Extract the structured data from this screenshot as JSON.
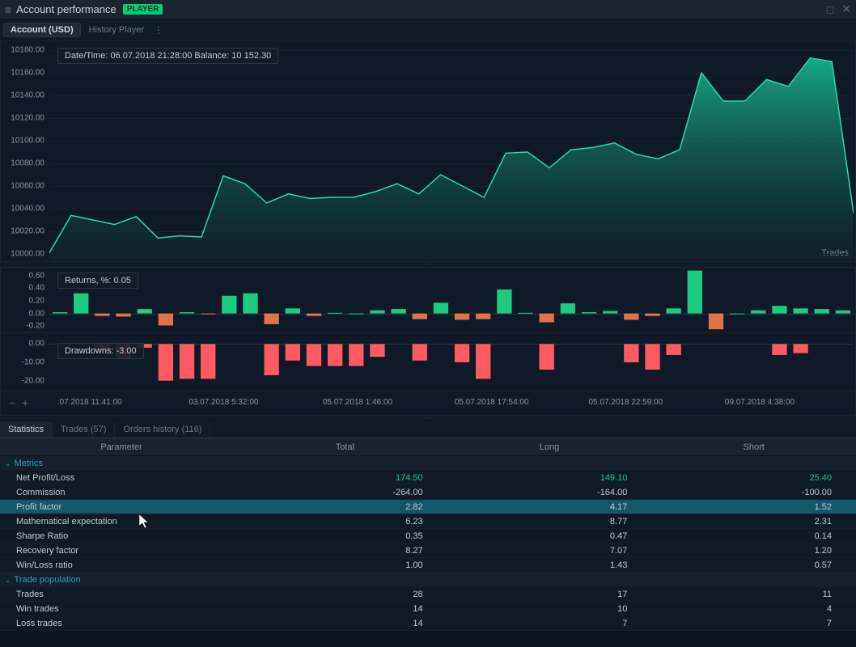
{
  "window": {
    "title": "Account performance",
    "badge": "PLAYER"
  },
  "toolbar": {
    "account_label": "Account (USD)",
    "mode_label": "History Player"
  },
  "balance_chart": {
    "type": "area",
    "info_label": "Date/Time: 06.07.2018 21:28:00    Balance: 10 152.30",
    "right_label": "Trades",
    "ylim": [
      9995,
      10185
    ],
    "yticks": [
      10000.0,
      10020.0,
      10040.0,
      10060.0,
      10080.0,
      10100.0,
      10120.0,
      10140.0,
      10160.0,
      10180.0
    ],
    "line_color": "#1de0a8",
    "fill_top": "#18b890",
    "fill_bottom": "#0f3030",
    "bg": "#0f1a28",
    "values": [
      10001,
      10034,
      10030,
      10026,
      10033,
      10014,
      10016,
      10015,
      10069,
      10062,
      10045,
      10053,
      10049,
      10050,
      10050,
      10055,
      10062,
      10053,
      10070,
      10060,
      10050,
      10089,
      10090,
      10076,
      10092,
      10094,
      10098,
      10088,
      10084,
      10092,
      10160,
      10135,
      10135,
      10154,
      10148,
      10173,
      10170,
      10036
    ]
  },
  "returns_chart": {
    "type": "bar",
    "info_label": "Returns, %: 0.05",
    "ylim": [
      -0.3,
      0.7
    ],
    "yticks": [
      -0.2,
      0.0,
      0.2,
      0.4,
      0.6
    ],
    "pos_color": "#1ecb82",
    "neg_color": "#e0734a",
    "values": [
      0.02,
      0.32,
      -0.04,
      -0.05,
      0.07,
      -0.19,
      0.02,
      -0.01,
      0.28,
      0.32,
      -0.17,
      0.08,
      -0.04,
      0.01,
      0.0,
      0.05,
      0.07,
      -0.09,
      0.17,
      -0.1,
      -0.09,
      0.38,
      0.01,
      -0.14,
      0.16,
      0.02,
      0.04,
      -0.1,
      -0.04,
      0.08,
      0.68,
      -0.25,
      0.0,
      0.05,
      0.12,
      0.08,
      0.07,
      0.05
    ]
  },
  "drawdowns_chart": {
    "type": "bar",
    "info_label": "Drawdowns: -3.00",
    "ylim": [
      -25,
      5
    ],
    "yticks": [
      -20.0,
      -10.0,
      0.0
    ],
    "neg_color": "#ff5a62",
    "values": [
      0,
      0,
      -4,
      -8,
      -2,
      -20,
      -19,
      -19,
      0,
      0,
      -17,
      -9,
      -12,
      -12,
      -12,
      -7,
      0,
      -9,
      0,
      -10,
      -19,
      0,
      0,
      -14,
      0,
      0,
      0,
      -10,
      -14,
      -6,
      0,
      0,
      0,
      0,
      -6,
      -5,
      0,
      0
    ]
  },
  "xaxis": {
    "ticks": [
      ".07.2018 11:41:00",
      "03.07.2018 5:32:00",
      "05.07.2018 1:46:00",
      "05.07.2018 17:54:00",
      "05.07.2018 22:59:00",
      "09.07.2018 4:38:00"
    ]
  },
  "tabs": {
    "statistics": "Statistics",
    "trades": "Trades (57)",
    "orders": "Orders history (116)"
  },
  "stats": {
    "headers": {
      "param": "Parameter",
      "total": "Total",
      "long": "Long",
      "short": "Short"
    },
    "groups": [
      {
        "name": "Metrics",
        "rows": [
          {
            "p": "Net Profit/Loss",
            "t": "174.50",
            "l": "149.10",
            "s": "25.40",
            "pos": true
          },
          {
            "p": "Commission",
            "t": "-264.00",
            "l": "-164.00",
            "s": "-100.00"
          },
          {
            "p": "Profit factor",
            "t": "2.82",
            "l": "4.17",
            "s": "1.52",
            "sel": true
          },
          {
            "p": "Mathematical expectation",
            "t": "6.23",
            "l": "8.77",
            "s": "2.31"
          },
          {
            "p": "Sharpe Ratio",
            "t": "0.35",
            "l": "0.47",
            "s": "0.14"
          },
          {
            "p": "Recovery factor",
            "t": "8.27",
            "l": "7.07",
            "s": "1.20"
          },
          {
            "p": "Win/Loss ratio",
            "t": "1.00",
            "l": "1.43",
            "s": "0.57"
          }
        ]
      },
      {
        "name": "Trade population",
        "rows": [
          {
            "p": "Trades",
            "t": "28",
            "l": "17",
            "s": "11"
          },
          {
            "p": "Win trades",
            "t": "14",
            "l": "10",
            "s": "4"
          },
          {
            "p": "Loss trades",
            "t": "14",
            "l": "7",
            "s": "7"
          }
        ]
      }
    ]
  },
  "colors": {
    "cursor_at": "profit-factor-row"
  }
}
